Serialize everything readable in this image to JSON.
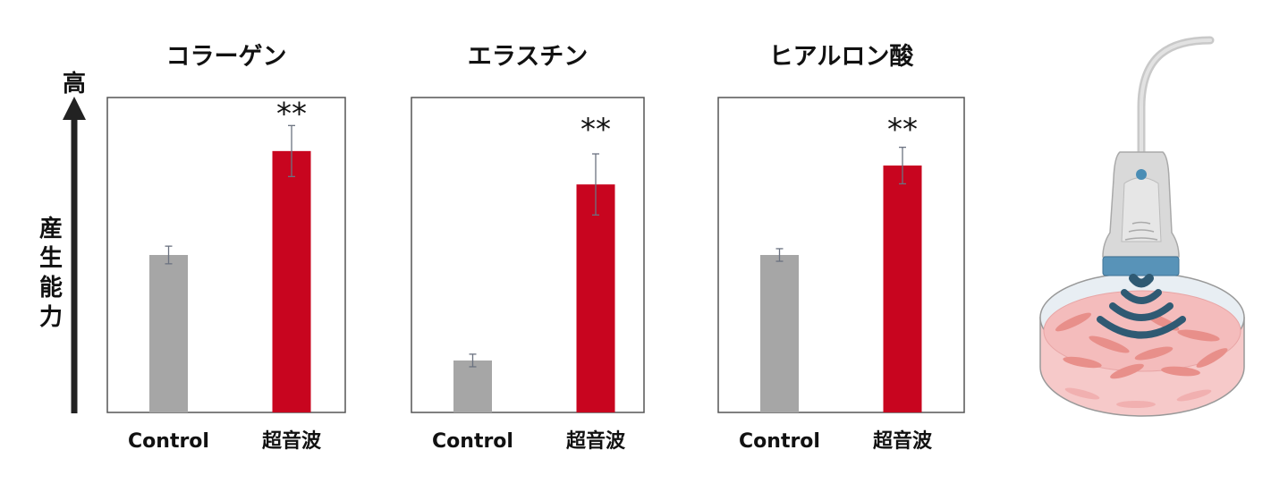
{
  "y_axis": {
    "high_label": "高",
    "label_chars": [
      "産",
      "生",
      "能",
      "力"
    ]
  },
  "chart_data": [
    {
      "type": "bar",
      "title": "コラーゲン",
      "categories": [
        "Control",
        "超音波"
      ],
      "values": [
        50,
        83
      ],
      "errors": [
        2.8,
        8.1
      ],
      "significance": "**",
      "ylim": [
        0,
        100
      ],
      "grid": false,
      "colors": [
        "#a6a6a6",
        "#c8051f"
      ]
    },
    {
      "type": "bar",
      "title": "エラスチン",
      "categories": [
        "Control",
        "超音波"
      ],
      "values": [
        16.5,
        72.4
      ],
      "errors": [
        2,
        9.7
      ],
      "significance": "**",
      "ylim": [
        0,
        100
      ],
      "grid": false,
      "colors": [
        "#a6a6a6",
        "#c8051f"
      ]
    },
    {
      "type": "bar",
      "title": "ヒアルロン酸",
      "categories": [
        "Control",
        "超音波"
      ],
      "values": [
        50,
        78.4
      ],
      "errors": [
        2,
        5.8
      ],
      "significance": "**",
      "ylim": [
        0,
        100
      ],
      "grid": false,
      "colors": [
        "#a6a6a6",
        "#c8051f"
      ]
    }
  ],
  "illustration": "ultrasound-probe-over-petri-dish-icon"
}
